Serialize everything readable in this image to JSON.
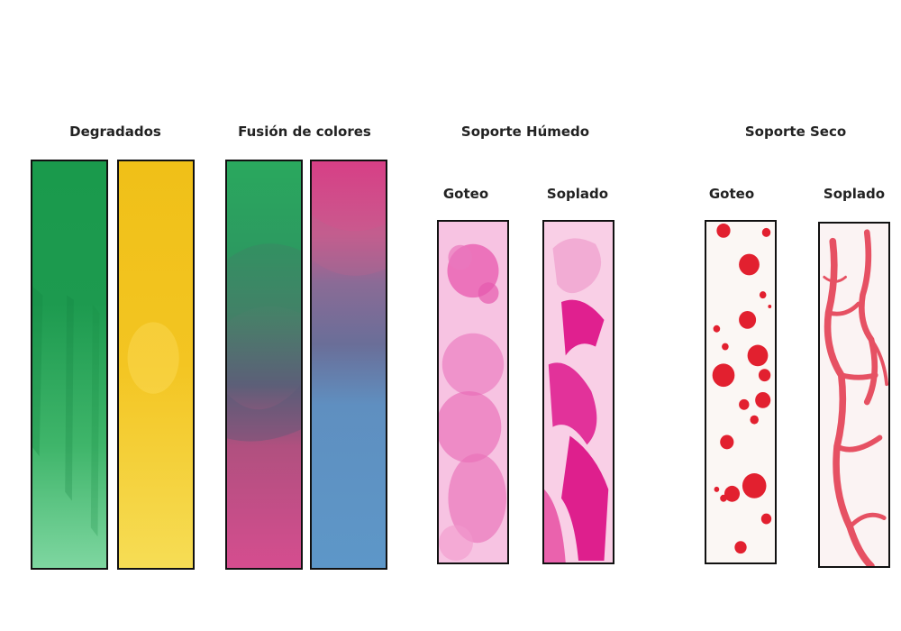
{
  "sections": {
    "degradados": {
      "title": "Degradados"
    },
    "fusion": {
      "title": "Fusión de colores"
    },
    "humedo": {
      "title": "Soporte Húmedo",
      "left": "Goteo",
      "right": "Soplado"
    },
    "seco": {
      "title": "Soporte Seco",
      "left": "Goteo",
      "right": "Soplado"
    }
  },
  "colors": {
    "green": "#1f9a4f",
    "green_light": "#5ec98a",
    "yellow": "#f3c51c",
    "pink": "#e23fa0",
    "magenta": "#e0147f",
    "blue": "#5f93c6",
    "purple": "#6d5f8a",
    "red": "#e02035"
  }
}
